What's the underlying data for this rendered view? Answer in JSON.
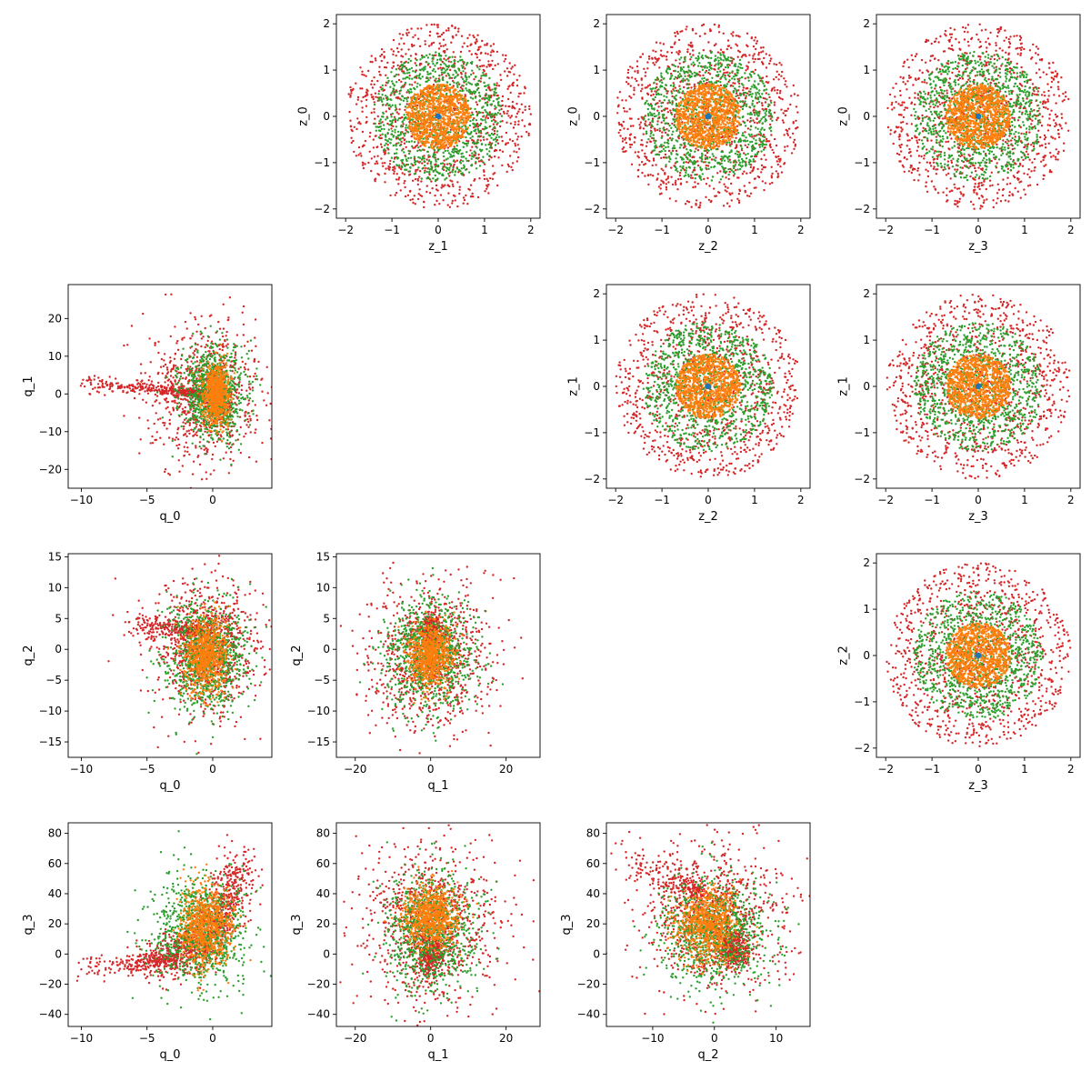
{
  "chart_data": [
    {
      "type": "scatter",
      "panel": "r0c1",
      "xlabel": "z_1",
      "ylabel": "z_0",
      "xlim": [
        -2.2,
        2.2
      ],
      "ylim": [
        -2.2,
        2.2
      ],
      "xticks": [
        -2,
        -1,
        0,
        1,
        2
      ],
      "yticks": [
        -2,
        -1,
        0,
        1,
        2
      ],
      "series": [
        {
          "color": "#d62728",
          "shape": "disk",
          "r_range": [
            0.0,
            2.0
          ],
          "points": 1000
        },
        {
          "color": "#2ca02c",
          "shape": "disk",
          "r_range": [
            0.0,
            1.4
          ],
          "points": 1000
        },
        {
          "color": "#ff7f0e",
          "shape": "disk",
          "r_range": [
            0.0,
            0.7
          ],
          "points": 1000
        },
        {
          "color": "#1f77b4",
          "shape": "disk",
          "r_range": [
            0.0,
            0.05
          ],
          "points": 40
        }
      ]
    },
    {
      "type": "scatter",
      "panel": "r0c2",
      "xlabel": "z_2",
      "ylabel": "z_0",
      "xlim": [
        -2.2,
        2.2
      ],
      "ylim": [
        -2.2,
        2.2
      ],
      "xticks": [
        -2,
        -1,
        0,
        1,
        2
      ],
      "yticks": [
        -2,
        -1,
        0,
        1,
        2
      ],
      "series": [
        {
          "color": "#d62728",
          "shape": "disk",
          "r_range": [
            0.0,
            2.0
          ],
          "points": 1000
        },
        {
          "color": "#2ca02c",
          "shape": "disk",
          "r_range": [
            0.0,
            1.4
          ],
          "points": 1000
        },
        {
          "color": "#ff7f0e",
          "shape": "disk",
          "r_range": [
            0.0,
            0.7
          ],
          "points": 1000
        },
        {
          "color": "#1f77b4",
          "shape": "disk",
          "r_range": [
            0.0,
            0.05
          ],
          "points": 40
        }
      ]
    },
    {
      "type": "scatter",
      "panel": "r0c3",
      "xlabel": "z_3",
      "ylabel": "z_0",
      "xlim": [
        -2.2,
        2.2
      ],
      "ylim": [
        -2.2,
        2.2
      ],
      "xticks": [
        -2,
        -1,
        0,
        1,
        2
      ],
      "yticks": [
        -2,
        -1,
        0,
        1,
        2
      ],
      "series": [
        {
          "color": "#d62728",
          "shape": "disk",
          "r_range": [
            0.0,
            2.0
          ],
          "points": 1000
        },
        {
          "color": "#2ca02c",
          "shape": "disk",
          "r_range": [
            0.0,
            1.4
          ],
          "points": 1000
        },
        {
          "color": "#ff7f0e",
          "shape": "disk",
          "r_range": [
            0.0,
            0.7
          ],
          "points": 1000
        },
        {
          "color": "#1f77b4",
          "shape": "disk",
          "r_range": [
            0.0,
            0.05
          ],
          "points": 40
        }
      ]
    },
    {
      "type": "scatter",
      "panel": "r1c2",
      "xlabel": "z_2",
      "ylabel": "z_1",
      "xlim": [
        -2.2,
        2.2
      ],
      "ylim": [
        -2.2,
        2.2
      ],
      "xticks": [
        -2,
        -1,
        0,
        1,
        2
      ],
      "yticks": [
        -2,
        -1,
        0,
        1,
        2
      ],
      "series": [
        {
          "color": "#d62728",
          "shape": "disk",
          "r_range": [
            0.0,
            2.0
          ],
          "points": 1000
        },
        {
          "color": "#2ca02c",
          "shape": "disk",
          "r_range": [
            0.0,
            1.4
          ],
          "points": 1000
        },
        {
          "color": "#ff7f0e",
          "shape": "disk",
          "r_range": [
            0.0,
            0.7
          ],
          "points": 1000
        },
        {
          "color": "#1f77b4",
          "shape": "disk",
          "r_range": [
            0.0,
            0.05
          ],
          "points": 40
        }
      ]
    },
    {
      "type": "scatter",
      "panel": "r1c3",
      "xlabel": "z_3",
      "ylabel": "z_1",
      "xlim": [
        -2.2,
        2.2
      ],
      "ylim": [
        -2.2,
        2.2
      ],
      "xticks": [
        -2,
        -1,
        0,
        1,
        2
      ],
      "yticks": [
        -2,
        -1,
        0,
        1,
        2
      ],
      "series": [
        {
          "color": "#d62728",
          "shape": "disk",
          "r_range": [
            0.0,
            2.0
          ],
          "points": 1000
        },
        {
          "color": "#2ca02c",
          "shape": "disk",
          "r_range": [
            0.0,
            1.4
          ],
          "points": 1000
        },
        {
          "color": "#ff7f0e",
          "shape": "disk",
          "r_range": [
            0.0,
            0.7
          ],
          "points": 1000
        },
        {
          "color": "#1f77b4",
          "shape": "disk",
          "r_range": [
            0.0,
            0.05
          ],
          "points": 40
        }
      ]
    },
    {
      "type": "scatter",
      "panel": "r2c3",
      "xlabel": "z_3",
      "ylabel": "z_2",
      "xlim": [
        -2.2,
        2.2
      ],
      "ylim": [
        -2.2,
        2.2
      ],
      "xticks": [
        -2,
        -1,
        0,
        1,
        2
      ],
      "yticks": [
        -2,
        -1,
        0,
        1,
        2
      ],
      "series": [
        {
          "color": "#d62728",
          "shape": "disk",
          "r_range": [
            0.0,
            2.0
          ],
          "points": 1000
        },
        {
          "color": "#2ca02c",
          "shape": "disk",
          "r_range": [
            0.0,
            1.4
          ],
          "points": 1000
        },
        {
          "color": "#ff7f0e",
          "shape": "disk",
          "r_range": [
            0.0,
            0.7
          ],
          "points": 1000
        },
        {
          "color": "#1f77b4",
          "shape": "disk",
          "r_range": [
            0.0,
            0.05
          ],
          "points": 40
        }
      ]
    },
    {
      "type": "scatter",
      "panel": "r1c0",
      "xlabel": "q_0",
      "ylabel": "q_1",
      "xlim": [
        -11,
        4.5
      ],
      "ylim": [
        -25,
        29
      ],
      "xticks": [
        -10,
        -5,
        0
      ],
      "yticks": [
        -20,
        -10,
        0,
        10,
        20
      ],
      "series": [
        {
          "color": "#d62728",
          "shape": "cloud",
          "center": [
            -0.5,
            0
          ],
          "spread": [
            2.0,
            9
          ],
          "points": 900
        },
        {
          "color": "#d62728",
          "shape": "arm",
          "from": [
            -1,
            0
          ],
          "to": [
            -10,
            3
          ],
          "spread": [
            0.3,
            1.0
          ],
          "points": 300
        },
        {
          "color": "#2ca02c",
          "shape": "cloud",
          "center": [
            0,
            0
          ],
          "spread": [
            1.2,
            6
          ],
          "points": 900
        },
        {
          "color": "#ff7f0e",
          "shape": "cloud",
          "center": [
            0.3,
            0
          ],
          "spread": [
            0.5,
            4
          ],
          "points": 700
        }
      ]
    },
    {
      "type": "scatter",
      "panel": "r2c0",
      "xlabel": "q_0",
      "ylabel": "q_2",
      "xlim": [
        -11,
        4.5
      ],
      "ylim": [
        -17.5,
        15.5
      ],
      "xticks": [
        -10,
        -5,
        0
      ],
      "yticks": [
        -15,
        -10,
        -5,
        0,
        5,
        10,
        15
      ],
      "series": [
        {
          "color": "#d62728",
          "shape": "cloud",
          "center": [
            -0.5,
            0
          ],
          "spread": [
            2.0,
            5.5
          ],
          "points": 900
        },
        {
          "color": "#d62728",
          "shape": "arm",
          "from": [
            -1,
            3
          ],
          "to": [
            -6,
            4
          ],
          "spread": [
            0.6,
            1.0
          ],
          "points": 250
        },
        {
          "color": "#2ca02c",
          "shape": "cloud",
          "center": [
            -0.5,
            -1
          ],
          "spread": [
            1.5,
            4.5
          ],
          "points": 900
        },
        {
          "color": "#ff7f0e",
          "shape": "cloud",
          "center": [
            -0.5,
            -1
          ],
          "spread": [
            0.8,
            3
          ],
          "points": 700
        }
      ]
    },
    {
      "type": "scatter",
      "panel": "r2c1",
      "xlabel": "q_1",
      "ylabel": "q_2",
      "xlim": [
        -25,
        29
      ],
      "ylim": [
        -17.5,
        15.5
      ],
      "xticks": [
        -20,
        0,
        20
      ],
      "yticks": [
        -15,
        -10,
        -5,
        0,
        5,
        10,
        15
      ],
      "series": [
        {
          "color": "#d62728",
          "shape": "cloud",
          "center": [
            0,
            -1
          ],
          "spread": [
            8,
            6
          ],
          "points": 900
        },
        {
          "color": "#d62728",
          "shape": "cloud",
          "center": [
            0,
            3
          ],
          "spread": [
            1.2,
            1.2
          ],
          "points": 300
        },
        {
          "color": "#2ca02c",
          "shape": "cloud",
          "center": [
            0,
            -1
          ],
          "spread": [
            6,
            4.5
          ],
          "points": 900
        },
        {
          "color": "#ff7f0e",
          "shape": "cloud",
          "center": [
            0,
            -1
          ],
          "spread": [
            3,
            2.5
          ],
          "points": 700
        }
      ]
    },
    {
      "type": "scatter",
      "panel": "r3c0",
      "xlabel": "q_0",
      "ylabel": "q_3",
      "xlim": [
        -11,
        4.5
      ],
      "ylim": [
        -48,
        87
      ],
      "xticks": [
        -10,
        -5,
        0
      ],
      "yticks": [
        -40,
        -20,
        0,
        20,
        40,
        60,
        80
      ],
      "series": [
        {
          "color": "#d62728",
          "shape": "curve",
          "from": [
            -6,
            -4
          ],
          "to": [
            2,
            60
          ],
          "spread": [
            0.8,
            8
          ],
          "points": 900
        },
        {
          "color": "#d62728",
          "shape": "arm",
          "from": [
            -3,
            -3
          ],
          "to": [
            -10,
            -10
          ],
          "spread": [
            0.4,
            4
          ],
          "points": 200
        },
        {
          "color": "#2ca02c",
          "shape": "cloud",
          "center": [
            -1,
            15
          ],
          "spread": [
            1.8,
            18
          ],
          "points": 900
        },
        {
          "color": "#ff7f0e",
          "shape": "cloud",
          "center": [
            -0.5,
            18
          ],
          "spread": [
            1.0,
            14
          ],
          "points": 700
        }
      ]
    },
    {
      "type": "scatter",
      "panel": "r3c1",
      "xlabel": "q_1",
      "ylabel": "q_3",
      "xlim": [
        -25,
        29
      ],
      "ylim": [
        -48,
        87
      ],
      "xticks": [
        -20,
        0,
        20
      ],
      "yticks": [
        -40,
        -20,
        0,
        20,
        40,
        60,
        80
      ],
      "series": [
        {
          "color": "#d62728",
          "shape": "cloud",
          "center": [
            0,
            20
          ],
          "spread": [
            9,
            25
          ],
          "points": 900
        },
        {
          "color": "#d62728",
          "shape": "cloud",
          "center": [
            0,
            0
          ],
          "spread": [
            1.5,
            7
          ],
          "points": 300
        },
        {
          "color": "#2ca02c",
          "shape": "cloud",
          "center": [
            0,
            15
          ],
          "spread": [
            6,
            20
          ],
          "points": 900
        },
        {
          "color": "#ff7f0e",
          "shape": "cloud",
          "center": [
            0,
            25
          ],
          "spread": [
            3.5,
            10
          ],
          "points": 700
        }
      ]
    },
    {
      "type": "scatter",
      "panel": "r3c2",
      "xlabel": "q_2",
      "ylabel": "q_3",
      "xlim": [
        -17.5,
        15.5
      ],
      "ylim": [
        -48,
        87
      ],
      "xticks": [
        -10,
        0,
        10
      ],
      "yticks": [
        -40,
        -20,
        0,
        20,
        40,
        60,
        80
      ],
      "series": [
        {
          "color": "#d62728",
          "shape": "cloud",
          "center": [
            0,
            25
          ],
          "spread": [
            6,
            22
          ],
          "points": 900
        },
        {
          "color": "#d62728",
          "shape": "arm",
          "from": [
            -2,
            40
          ],
          "to": [
            -15,
            65
          ],
          "spread": [
            1.0,
            6
          ],
          "points": 200
        },
        {
          "color": "#d62728",
          "shape": "cloud",
          "center": [
            3,
            3
          ],
          "spread": [
            1.2,
            6
          ],
          "points": 300
        },
        {
          "color": "#2ca02c",
          "shape": "cloud",
          "center": [
            0,
            15
          ],
          "spread": [
            4.5,
            18
          ],
          "points": 900
        },
        {
          "color": "#ff7f0e",
          "shape": "cloud",
          "center": [
            -1,
            20
          ],
          "spread": [
            2.5,
            12
          ],
          "points": 700
        }
      ]
    }
  ]
}
